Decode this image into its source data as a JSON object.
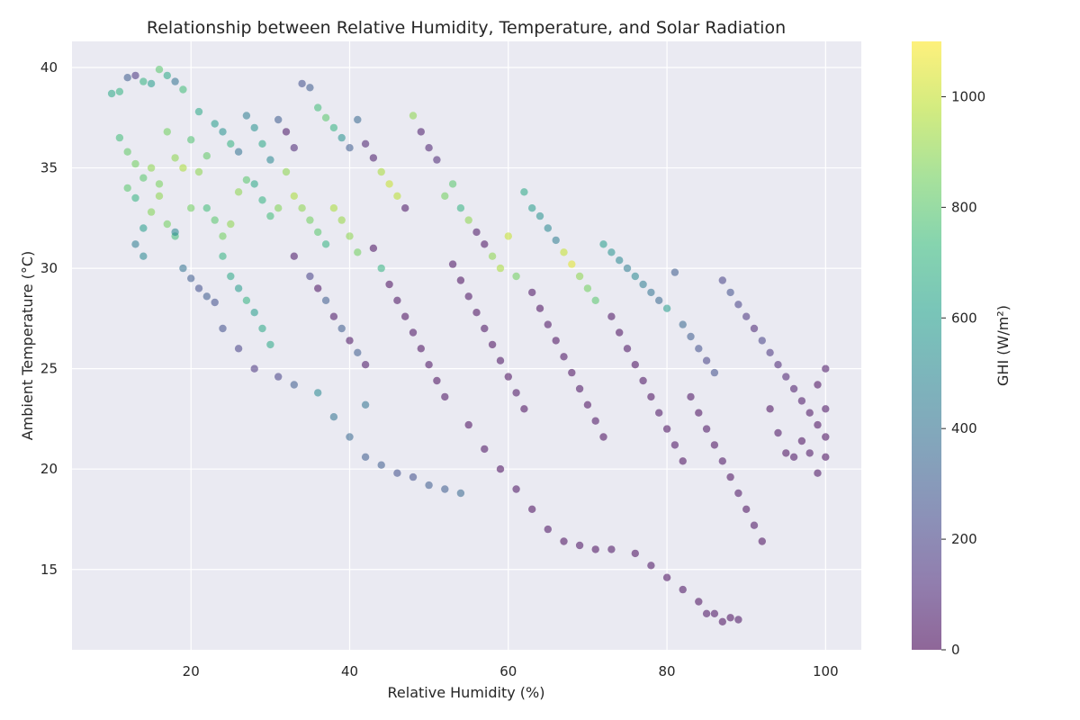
{
  "chart_data": {
    "type": "scatter",
    "title": "Relationship between Relative Humidity, Temperature, and Solar Radiation",
    "xlabel": "Relative Humidity (%)",
    "ylabel": "Ambient Temperature (°C)",
    "colorbar_label": "GHI (W/m²)",
    "xlim": [
      5,
      104.5
    ],
    "ylim": [
      11,
      41.3
    ],
    "clim": [
      0,
      1100
    ],
    "xticks": [
      20,
      40,
      60,
      80,
      100
    ],
    "yticks": [
      15,
      20,
      25,
      30,
      35,
      40
    ],
    "cticks": [
      0,
      200,
      400,
      600,
      800,
      1000
    ],
    "colormap": "viridis",
    "marker_alpha": 0.55,
    "grid": true,
    "plot_background": "#eaeaf2",
    "grid_color": "#ffffff",
    "text_color": "#262626",
    "viridis_stops": [
      "#440154",
      "#482878",
      "#3e4989",
      "#31688e",
      "#26828e",
      "#1f9e89",
      "#35b779",
      "#6ece58",
      "#b5de2b",
      "#fde725"
    ],
    "points": [
      [
        10,
        38.7,
        650
      ],
      [
        11,
        38.8,
        700
      ],
      [
        12,
        39.5,
        300
      ],
      [
        13,
        39.6,
        150
      ],
      [
        14,
        39.3,
        700
      ],
      [
        15,
        39.2,
        600
      ],
      [
        16,
        39.9,
        800
      ],
      [
        17,
        39.6,
        650
      ],
      [
        18,
        39.3,
        400
      ],
      [
        19,
        38.9,
        750
      ],
      [
        11,
        36.5,
        750
      ],
      [
        12,
        35.8,
        820
      ],
      [
        13,
        35.2,
        850
      ],
      [
        14,
        34.5,
        800
      ],
      [
        15,
        35.0,
        900
      ],
      [
        16,
        34.2,
        860
      ],
      [
        17,
        36.8,
        850
      ],
      [
        18,
        35.5,
        900
      ],
      [
        19,
        35.0,
        950
      ],
      [
        20,
        36.4,
        780
      ],
      [
        12,
        34.0,
        800
      ],
      [
        13,
        33.5,
        700
      ],
      [
        14,
        32.0,
        600
      ],
      [
        15,
        32.8,
        880
      ],
      [
        16,
        33.6,
        900
      ],
      [
        17,
        32.2,
        850
      ],
      [
        18,
        31.6,
        750
      ],
      [
        20,
        33.0,
        850
      ],
      [
        21,
        34.8,
        900
      ],
      [
        22,
        35.6,
        820
      ],
      [
        13,
        31.2,
        450
      ],
      [
        14,
        30.6,
        500
      ],
      [
        18,
        31.8,
        500
      ],
      [
        19,
        30.0,
        400
      ],
      [
        20,
        29.5,
        300
      ],
      [
        21,
        29.0,
        250
      ],
      [
        22,
        28.6,
        300
      ],
      [
        23,
        28.3,
        250
      ],
      [
        24,
        27.0,
        250
      ],
      [
        26,
        26.0,
        200
      ],
      [
        21,
        37.8,
        650
      ],
      [
        23,
        37.2,
        600
      ],
      [
        24,
        36.8,
        550
      ],
      [
        25,
        36.2,
        700
      ],
      [
        26,
        35.8,
        400
      ],
      [
        27,
        37.6,
        450
      ],
      [
        28,
        37.0,
        550
      ],
      [
        29,
        36.2,
        650
      ],
      [
        30,
        35.4,
        500
      ],
      [
        31,
        37.4,
        300
      ],
      [
        22,
        33.0,
        750
      ],
      [
        23,
        32.4,
        800
      ],
      [
        24,
        31.6,
        850
      ],
      [
        25,
        32.2,
        900
      ],
      [
        26,
        33.8,
        900
      ],
      [
        27,
        34.4,
        800
      ],
      [
        28,
        34.2,
        650
      ],
      [
        29,
        33.4,
        700
      ],
      [
        30,
        32.6,
        750
      ],
      [
        31,
        33.0,
        880
      ],
      [
        24,
        30.6,
        700
      ],
      [
        25,
        29.6,
        650
      ],
      [
        26,
        29.0,
        600
      ],
      [
        27,
        28.4,
        700
      ],
      [
        28,
        27.8,
        600
      ],
      [
        29,
        27.0,
        650
      ],
      [
        30,
        26.2,
        650
      ],
      [
        28,
        25.0,
        150
      ],
      [
        31,
        24.6,
        200
      ],
      [
        33,
        24.2,
        300
      ],
      [
        32,
        36.8,
        50
      ],
      [
        33,
        36.0,
        100
      ],
      [
        34,
        39.2,
        250
      ],
      [
        35,
        39.0,
        300
      ],
      [
        36,
        38.0,
        750
      ],
      [
        37,
        37.5,
        800
      ],
      [
        38,
        37.0,
        700
      ],
      [
        39,
        36.5,
        550
      ],
      [
        40,
        36.0,
        300
      ],
      [
        41,
        37.4,
        350
      ],
      [
        32,
        34.8,
        900
      ],
      [
        33,
        33.6,
        950
      ],
      [
        34,
        33.0,
        900
      ],
      [
        35,
        32.4,
        850
      ],
      [
        36,
        31.8,
        800
      ],
      [
        37,
        31.2,
        700
      ],
      [
        38,
        33.0,
        950
      ],
      [
        39,
        32.4,
        920
      ],
      [
        40,
        31.6,
        900
      ],
      [
        41,
        30.8,
        850
      ],
      [
        33,
        30.6,
        50
      ],
      [
        35,
        29.6,
        200
      ],
      [
        36,
        29.0,
        30
      ],
      [
        37,
        28.4,
        300
      ],
      [
        38,
        27.6,
        40
      ],
      [
        39,
        27.0,
        300
      ],
      [
        40,
        26.4,
        30
      ],
      [
        41,
        25.8,
        300
      ],
      [
        42,
        25.2,
        40
      ],
      [
        42,
        23.2,
        400
      ],
      [
        36,
        23.8,
        500
      ],
      [
        38,
        22.6,
        400
      ],
      [
        40,
        21.6,
        350
      ],
      [
        42,
        20.6,
        300
      ],
      [
        44,
        20.2,
        300
      ],
      [
        46,
        19.8,
        250
      ],
      [
        48,
        19.6,
        250
      ],
      [
        50,
        19.2,
        300
      ],
      [
        52,
        19.0,
        300
      ],
      [
        54,
        18.8,
        350
      ],
      [
        42,
        36.2,
        80
      ],
      [
        43,
        35.5,
        60
      ],
      [
        44,
        34.8,
        950
      ],
      [
        45,
        34.2,
        1000
      ],
      [
        46,
        33.6,
        980
      ],
      [
        47,
        33.0,
        40
      ],
      [
        48,
        37.6,
        900
      ],
      [
        49,
        36.8,
        60
      ],
      [
        50,
        36.0,
        80
      ],
      [
        51,
        35.4,
        100
      ],
      [
        43,
        31.0,
        30
      ],
      [
        44,
        30.0,
        700
      ],
      [
        45,
        29.2,
        20
      ],
      [
        46,
        28.4,
        30
      ],
      [
        47,
        27.6,
        20
      ],
      [
        48,
        26.8,
        30
      ],
      [
        49,
        26.0,
        20
      ],
      [
        50,
        25.2,
        30
      ],
      [
        51,
        24.4,
        20
      ],
      [
        52,
        23.6,
        30
      ],
      [
        52,
        33.6,
        850
      ],
      [
        53,
        34.2,
        800
      ],
      [
        54,
        33.0,
        700
      ],
      [
        55,
        32.4,
        900
      ],
      [
        56,
        31.8,
        40
      ],
      [
        57,
        31.2,
        30
      ],
      [
        58,
        30.6,
        900
      ],
      [
        59,
        30.0,
        950
      ],
      [
        60,
        31.6,
        1000
      ],
      [
        61,
        29.6,
        850
      ],
      [
        53,
        30.2,
        30
      ],
      [
        54,
        29.4,
        20
      ],
      [
        55,
        28.6,
        30
      ],
      [
        56,
        27.8,
        20
      ],
      [
        57,
        27.0,
        30
      ],
      [
        58,
        26.2,
        20
      ],
      [
        59,
        25.4,
        30
      ],
      [
        60,
        24.6,
        20
      ],
      [
        61,
        23.8,
        30
      ],
      [
        62,
        23.0,
        20
      ],
      [
        55,
        22.2,
        20
      ],
      [
        57,
        21.0,
        30
      ],
      [
        59,
        20.0,
        20
      ],
      [
        61,
        19.0,
        30
      ],
      [
        63,
        18.0,
        20
      ],
      [
        65,
        17.0,
        30
      ],
      [
        67,
        16.4,
        20
      ],
      [
        69,
        16.2,
        30
      ],
      [
        71,
        16.0,
        20
      ],
      [
        73,
        16.0,
        30
      ],
      [
        62,
        33.8,
        650
      ],
      [
        63,
        33.0,
        600
      ],
      [
        64,
        32.6,
        550
      ],
      [
        65,
        32.0,
        500
      ],
      [
        66,
        31.4,
        450
      ],
      [
        67,
        30.8,
        1000
      ],
      [
        68,
        30.2,
        1050
      ],
      [
        69,
        29.6,
        900
      ],
      [
        70,
        29.0,
        850
      ],
      [
        71,
        28.4,
        800
      ],
      [
        63,
        28.8,
        30
      ],
      [
        64,
        28.0,
        20
      ],
      [
        65,
        27.2,
        30
      ],
      [
        66,
        26.4,
        20
      ],
      [
        67,
        25.6,
        30
      ],
      [
        68,
        24.8,
        20
      ],
      [
        69,
        24.0,
        30
      ],
      [
        70,
        23.2,
        20
      ],
      [
        71,
        22.4,
        30
      ],
      [
        72,
        21.6,
        20
      ],
      [
        72,
        31.2,
        600
      ],
      [
        73,
        30.8,
        550
      ],
      [
        74,
        30.4,
        500
      ],
      [
        75,
        30.0,
        450
      ],
      [
        76,
        29.6,
        500
      ],
      [
        77,
        29.2,
        450
      ],
      [
        78,
        28.8,
        400
      ],
      [
        79,
        28.4,
        350
      ],
      [
        80,
        28.0,
        600
      ],
      [
        81,
        29.8,
        300
      ],
      [
        73,
        27.6,
        30
      ],
      [
        74,
        26.8,
        20
      ],
      [
        75,
        26.0,
        30
      ],
      [
        76,
        25.2,
        20
      ],
      [
        77,
        24.4,
        30
      ],
      [
        78,
        23.6,
        20
      ],
      [
        79,
        22.8,
        30
      ],
      [
        80,
        22.0,
        20
      ],
      [
        81,
        21.2,
        30
      ],
      [
        82,
        20.4,
        20
      ],
      [
        82,
        27.2,
        350
      ],
      [
        83,
        26.6,
        300
      ],
      [
        84,
        26.0,
        250
      ],
      [
        85,
        25.4,
        200
      ],
      [
        86,
        24.8,
        250
      ],
      [
        87,
        29.4,
        200
      ],
      [
        88,
        28.8,
        250
      ],
      [
        89,
        28.2,
        200
      ],
      [
        90,
        27.6,
        150
      ],
      [
        91,
        27.0,
        100
      ],
      [
        83,
        23.6,
        30
      ],
      [
        84,
        22.8,
        20
      ],
      [
        85,
        22.0,
        30
      ],
      [
        86,
        21.2,
        20
      ],
      [
        87,
        20.4,
        30
      ],
      [
        88,
        19.6,
        20
      ],
      [
        89,
        18.8,
        30
      ],
      [
        90,
        18.0,
        20
      ],
      [
        91,
        17.2,
        30
      ],
      [
        92,
        16.4,
        20
      ],
      [
        92,
        26.4,
        200
      ],
      [
        93,
        25.8,
        150
      ],
      [
        94,
        25.2,
        100
      ],
      [
        95,
        24.6,
        80
      ],
      [
        96,
        24.0,
        60
      ],
      [
        97,
        23.4,
        40
      ],
      [
        98,
        22.8,
        30
      ],
      [
        99,
        22.2,
        20
      ],
      [
        100,
        21.6,
        20
      ],
      [
        100,
        25.0,
        40
      ],
      [
        93,
        23.0,
        20
      ],
      [
        94,
        21.8,
        30
      ],
      [
        95,
        20.8,
        20
      ],
      [
        96,
        20.6,
        30
      ],
      [
        97,
        21.4,
        20
      ],
      [
        98,
        20.8,
        30
      ],
      [
        99,
        24.2,
        20
      ],
      [
        100,
        23.0,
        30
      ],
      [
        100,
        20.6,
        20
      ],
      [
        99,
        19.8,
        30
      ],
      [
        76,
        15.8,
        20
      ],
      [
        78,
        15.2,
        30
      ],
      [
        80,
        14.6,
        20
      ],
      [
        82,
        14.0,
        30
      ],
      [
        84,
        13.4,
        20
      ],
      [
        86,
        12.8,
        30
      ],
      [
        88,
        12.6,
        20
      ],
      [
        89,
        12.5,
        30
      ],
      [
        87,
        12.4,
        20
      ],
      [
        85,
        12.8,
        30
      ]
    ]
  }
}
